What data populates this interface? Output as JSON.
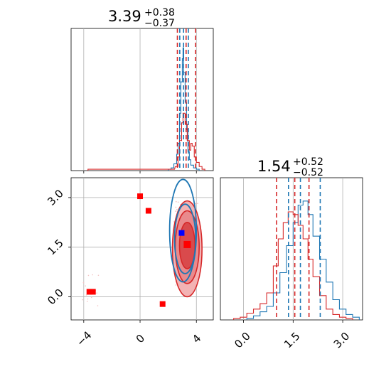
{
  "chart_data": [
    {
      "type": "histogram",
      "panel": "top-left",
      "title": {
        "value": "3.39",
        "upper": "+0.38",
        "lower": "−0.37"
      },
      "xlim": [
        -4.9,
        5.2
      ],
      "ylim": [
        0,
        1.0
      ],
      "quantiles": {
        "blue": [
          2.82,
          3.09,
          3.43
        ],
        "red": [
          2.65,
          3.27,
          3.94
        ]
      },
      "series": [
        {
          "color": "#1f77b4",
          "bins": [
            [
              2.0,
              0.01
            ],
            [
              2.2,
              0.02
            ],
            [
              2.4,
              0.05
            ],
            [
              2.6,
              0.12
            ],
            [
              2.7,
              0.2
            ],
            [
              2.8,
              0.42
            ],
            [
              2.9,
              0.65
            ],
            [
              3.0,
              0.82
            ],
            [
              3.05,
              0.9
            ],
            [
              3.1,
              0.72
            ],
            [
              3.2,
              0.5
            ],
            [
              3.3,
              0.3
            ],
            [
              3.4,
              0.14
            ],
            [
              3.5,
              0.08
            ],
            [
              3.6,
              0.04
            ],
            [
              3.8,
              0.02
            ],
            [
              4.0,
              0.01
            ]
          ]
        },
        {
          "color": "#d62728",
          "bins": [
            [
              -3.7,
              0.01
            ],
            [
              2.2,
              0.01
            ],
            [
              2.5,
              0.03
            ],
            [
              2.7,
              0.1
            ],
            [
              2.8,
              0.22
            ],
            [
              2.95,
              0.35
            ],
            [
              3.05,
              0.42
            ],
            [
              3.2,
              0.34
            ],
            [
              3.35,
              0.22
            ],
            [
              3.5,
              0.15
            ],
            [
              3.6,
              0.2
            ],
            [
              3.7,
              0.18
            ],
            [
              3.85,
              0.1
            ],
            [
              4.0,
              0.06
            ],
            [
              4.2,
              0.03
            ],
            [
              4.4,
              0.01
            ]
          ]
        }
      ]
    },
    {
      "type": "scatter",
      "panel": "bottom-left",
      "x_ticks": [
        "−4",
        "0",
        "4"
      ],
      "y_ticks": [
        "0.0",
        "1.5",
        "3.0"
      ],
      "xlim": [
        -4.9,
        5.2
      ],
      "ylim": [
        -0.7,
        3.6
      ],
      "blue_center": [
        2.95,
        1.93
      ],
      "red_center": [
        3.35,
        1.58
      ],
      "red_markers": [
        [
          0.0,
          3.04
        ],
        [
          0.6,
          2.6
        ],
        [
          -3.6,
          0.15
        ],
        [
          -3.35,
          0.15
        ],
        [
          1.6,
          -0.22
        ]
      ],
      "blue_contours": [
        {
          "cx": 3.2,
          "cy": 1.75,
          "rx": 0.75,
          "ry": 1.05
        },
        {
          "cx": 3.05,
          "cy": 2.0,
          "rx": 0.95,
          "ry": 1.55
        }
      ],
      "red_contours": [
        {
          "cx": 3.35,
          "cy": 1.55,
          "rx": 0.55,
          "ry": 0.7
        },
        {
          "cx": 3.35,
          "cy": 1.5,
          "rx": 0.85,
          "ry": 1.1
        },
        {
          "cx": 3.35,
          "cy": 1.45,
          "rx": 1.05,
          "ry": 1.45
        }
      ]
    },
    {
      "type": "histogram",
      "panel": "bottom-right",
      "title": {
        "value": "1.54",
        "upper": "+0.52",
        "lower": "−0.52"
      },
      "x_ticks": [
        "0.0",
        "1.5",
        "3.0"
      ],
      "xlim": [
        -0.7,
        3.6
      ],
      "ylim": [
        0,
        1.0
      ],
      "quantiles": {
        "blue": [
          1.36,
          1.72,
          2.32
        ],
        "red": [
          1.0,
          1.55,
          1.98
        ]
      },
      "series": [
        {
          "color": "#1f77b4",
          "bins": [
            [
              0.1,
              0.01
            ],
            [
              0.3,
              0.03
            ],
            [
              0.5,
              0.06
            ],
            [
              0.7,
              0.1
            ],
            [
              0.9,
              0.2
            ],
            [
              1.1,
              0.35
            ],
            [
              1.3,
              0.55
            ],
            [
              1.5,
              0.72
            ],
            [
              1.65,
              0.85
            ],
            [
              1.8,
              0.88
            ],
            [
              1.95,
              0.78
            ],
            [
              2.1,
              0.62
            ],
            [
              2.3,
              0.45
            ],
            [
              2.5,
              0.28
            ],
            [
              2.7,
              0.15
            ],
            [
              2.9,
              0.08
            ],
            [
              3.1,
              0.04
            ],
            [
              3.3,
              0.02
            ]
          ]
        },
        {
          "color": "#d62728",
          "bins": [
            [
              -0.3,
              0.01
            ],
            [
              -0.1,
              0.02
            ],
            [
              0.1,
              0.05
            ],
            [
              0.3,
              0.08
            ],
            [
              0.5,
              0.12
            ],
            [
              0.7,
              0.2
            ],
            [
              0.9,
              0.4
            ],
            [
              1.05,
              0.6
            ],
            [
              1.2,
              0.72
            ],
            [
              1.35,
              0.8
            ],
            [
              1.5,
              0.78
            ],
            [
              1.65,
              0.7
            ],
            [
              1.8,
              0.6
            ],
            [
              1.95,
              0.45
            ],
            [
              2.1,
              0.32
            ],
            [
              2.3,
              0.18
            ],
            [
              2.5,
              0.08
            ],
            [
              2.7,
              0.04
            ],
            [
              2.9,
              0.02
            ],
            [
              3.1,
              0.01
            ]
          ]
        }
      ]
    }
  ],
  "colors": {
    "blue": "#1f77b4",
    "red": "#d62728",
    "marker_red": "#ff0000",
    "marker_blue": "#0000ff"
  }
}
